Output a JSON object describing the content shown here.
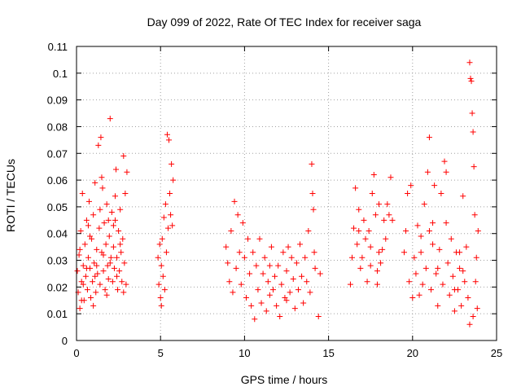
{
  "chart_data": {
    "type": "scatter",
    "title": "Day 099 of 2022, Rate Of TEC Index for receiver saga",
    "xlabel": "GPS time / hours",
    "ylabel": "ROTI / TECUs",
    "xlim": [
      0,
      25
    ],
    "ylim": [
      0,
      0.11
    ],
    "x_ticks": [
      0,
      5,
      10,
      15,
      20,
      25
    ],
    "x_tick_labels": [
      "0",
      "5",
      "10",
      "15",
      "20",
      "25"
    ],
    "y_ticks": [
      0,
      0.01,
      0.02,
      0.03,
      0.04,
      0.05,
      0.06,
      0.07,
      0.08,
      0.09,
      0.1,
      0.11
    ],
    "y_tick_labels": [
      "0",
      "0.01",
      "0.02",
      "0.03",
      "0.04",
      "0.05",
      "0.06",
      "0.07",
      "0.08",
      "0.09",
      "0.1",
      "0.11"
    ],
    "grid": true,
    "marker": "plus",
    "marker_color": "#ff0000",
    "series": [
      {
        "values": [
          [
            0.05,
            0.026
          ],
          [
            0.1,
            0.018
          ],
          [
            0.15,
            0.032
          ],
          [
            0.2,
            0.012
          ],
          [
            0.25,
            0.041
          ],
          [
            0.3,
            0.022
          ],
          [
            0.35,
            0.055
          ],
          [
            0.4,
            0.028
          ],
          [
            0.45,
            0.015
          ],
          [
            0.5,
            0.036
          ],
          [
            0.55,
            0.024
          ],
          [
            0.6,
            0.045
          ],
          [
            0.65,
            0.019
          ],
          [
            0.7,
            0.031
          ],
          [
            0.75,
            0.052
          ],
          [
            0.8,
            0.027
          ],
          [
            0.85,
            0.016
          ],
          [
            0.9,
            0.038
          ],
          [
            0.95,
            0.022
          ],
          [
            1.0,
            0.047
          ],
          [
            1.05,
            0.029
          ],
          [
            1.1,
            0.059
          ],
          [
            1.15,
            0.018
          ],
          [
            1.2,
            0.034
          ],
          [
            1.25,
            0.025
          ],
          [
            1.3,
            0.073
          ],
          [
            1.35,
            0.042
          ],
          [
            1.4,
            0.021
          ],
          [
            1.45,
            0.076
          ],
          [
            1.5,
            0.033
          ],
          [
            1.55,
            0.057
          ],
          [
            1.6,
            0.026
          ],
          [
            1.65,
            0.044
          ],
          [
            1.7,
            0.019
          ],
          [
            1.75,
            0.036
          ],
          [
            1.8,
            0.051
          ],
          [
            1.85,
            0.028
          ],
          [
            1.9,
            0.023
          ],
          [
            1.95,
            0.039
          ],
          [
            2.0,
            0.083
          ],
          [
            2.05,
            0.031
          ],
          [
            2.1,
            0.048
          ],
          [
            2.15,
            0.022
          ],
          [
            2.2,
            0.035
          ],
          [
            2.25,
            0.027
          ],
          [
            2.3,
            0.045
          ],
          [
            2.35,
            0.064
          ],
          [
            2.4,
            0.031
          ],
          [
            2.45,
            0.019
          ],
          [
            2.5,
            0.041
          ],
          [
            2.55,
            0.026
          ],
          [
            2.6,
            0.049
          ],
          [
            2.65,
            0.033
          ],
          [
            2.7,
            0.022
          ],
          [
            2.75,
            0.038
          ],
          [
            2.8,
            0.069
          ],
          [
            2.85,
            0.029
          ],
          [
            2.9,
            0.055
          ],
          [
            2.95,
            0.021
          ],
          [
            3.0,
            0.063
          ],
          [
            0.2,
            0.034
          ],
          [
            0.4,
            0.021
          ],
          [
            0.6,
            0.027
          ],
          [
            0.8,
            0.039
          ],
          [
            1.0,
            0.013
          ],
          [
            1.2,
            0.028
          ],
          [
            1.4,
            0.049
          ],
          [
            1.6,
            0.032
          ],
          [
            1.8,
            0.017
          ],
          [
            2.0,
            0.029
          ],
          [
            2.2,
            0.043
          ],
          [
            2.4,
            0.024
          ],
          [
            2.6,
            0.036
          ],
          [
            2.8,
            0.018
          ],
          [
            0.3,
            0.015
          ],
          [
            0.7,
            0.043
          ],
          [
            1.1,
            0.024
          ],
          [
            1.5,
            0.061
          ],
          [
            1.9,
            0.045
          ],
          [
            2.3,
            0.054
          ],
          [
            4.85,
            0.031
          ],
          [
            4.9,
            0.021
          ],
          [
            4.95,
            0.036
          ],
          [
            5.0,
            0.016
          ],
          [
            5.05,
            0.028
          ],
          [
            5.1,
            0.038
          ],
          [
            5.15,
            0.024
          ],
          [
            5.2,
            0.046
          ],
          [
            5.25,
            0.019
          ],
          [
            5.3,
            0.051
          ],
          [
            5.35,
            0.033
          ],
          [
            5.4,
            0.077
          ],
          [
            5.45,
            0.042
          ],
          [
            5.5,
            0.075
          ],
          [
            5.55,
            0.055
          ],
          [
            5.6,
            0.047
          ],
          [
            5.65,
            0.066
          ],
          [
            5.7,
            0.043
          ],
          [
            5.75,
            0.06
          ],
          [
            5.05,
            0.013
          ],
          [
            8.9,
            0.035
          ],
          [
            9.0,
            0.029
          ],
          [
            9.1,
            0.022
          ],
          [
            9.2,
            0.041
          ],
          [
            9.3,
            0.018
          ],
          [
            9.4,
            0.052
          ],
          [
            9.5,
            0.027
          ],
          [
            9.6,
            0.047
          ],
          [
            9.7,
            0.033
          ],
          [
            9.8,
            0.021
          ],
          [
            9.9,
            0.044
          ],
          [
            10.0,
            0.031
          ],
          [
            10.1,
            0.016
          ],
          [
            10.2,
            0.038
          ],
          [
            10.3,
            0.025
          ],
          [
            10.4,
            0.013
          ],
          [
            10.5,
            0.033
          ],
          [
            10.6,
            0.008
          ],
          [
            10.7,
            0.028
          ],
          [
            10.8,
            0.019
          ],
          [
            10.9,
            0.038
          ],
          [
            11.0,
            0.014
          ],
          [
            11.1,
            0.025
          ],
          [
            11.2,
            0.031
          ],
          [
            11.3,
            0.011
          ],
          [
            11.4,
            0.022
          ],
          [
            11.5,
            0.017
          ],
          [
            11.6,
            0.035
          ],
          [
            11.7,
            0.019
          ],
          [
            11.8,
            0.024
          ],
          [
            11.9,
            0.013
          ],
          [
            12.0,
            0.028
          ],
          [
            12.1,
            0.009
          ],
          [
            12.2,
            0.021
          ],
          [
            12.3,
            0.033
          ],
          [
            12.4,
            0.016
          ],
          [
            12.5,
            0.026
          ],
          [
            12.6,
            0.035
          ],
          [
            12.7,
            0.018
          ],
          [
            12.8,
            0.031
          ],
          [
            12.9,
            0.023
          ],
          [
            13.0,
            0.012
          ],
          [
            13.1,
            0.029
          ],
          [
            13.2,
            0.019
          ],
          [
            13.3,
            0.036
          ],
          [
            13.4,
            0.024
          ],
          [
            13.5,
            0.014
          ],
          [
            13.6,
            0.031
          ],
          [
            13.7,
            0.022
          ],
          [
            13.8,
            0.041
          ],
          [
            13.9,
            0.018
          ],
          [
            14.0,
            0.066
          ],
          [
            14.05,
            0.055
          ],
          [
            14.1,
            0.049
          ],
          [
            14.15,
            0.033
          ],
          [
            14.2,
            0.027
          ],
          [
            14.5,
            0.025
          ],
          [
            14.4,
            0.009
          ],
          [
            11.5,
            0.028
          ],
          [
            12.5,
            0.015
          ],
          [
            16.3,
            0.021
          ],
          [
            16.4,
            0.031
          ],
          [
            16.5,
            0.042
          ],
          [
            16.6,
            0.057
          ],
          [
            16.7,
            0.036
          ],
          [
            16.8,
            0.049
          ],
          [
            16.9,
            0.027
          ],
          [
            17.0,
            0.031
          ],
          [
            17.1,
            0.045
          ],
          [
            17.2,
            0.038
          ],
          [
            17.3,
            0.022
          ],
          [
            17.4,
            0.041
          ],
          [
            17.5,
            0.035
          ],
          [
            17.6,
            0.055
          ],
          [
            17.7,
            0.062
          ],
          [
            17.8,
            0.047
          ],
          [
            17.9,
            0.021
          ],
          [
            18.0,
            0.033
          ],
          [
            18.1,
            0.029
          ],
          [
            18.3,
            0.045
          ],
          [
            18.4,
            0.038
          ],
          [
            18.5,
            0.051
          ],
          [
            18.6,
            0.047
          ],
          [
            18.7,
            0.061
          ],
          [
            18.8,
            0.045
          ],
          [
            17.9,
            0.026
          ],
          [
            18.0,
            0.051
          ],
          [
            16.8,
            0.041
          ],
          [
            17.5,
            0.028
          ],
          [
            18.2,
            0.034
          ],
          [
            19.5,
            0.033
          ],
          [
            19.6,
            0.041
          ],
          [
            19.7,
            0.055
          ],
          [
            19.8,
            0.022
          ],
          [
            19.9,
            0.058
          ],
          [
            20.0,
            0.016
          ],
          [
            20.1,
            0.031
          ],
          [
            20.2,
            0.025
          ],
          [
            20.3,
            0.043
          ],
          [
            20.4,
            0.017
          ],
          [
            20.5,
            0.033
          ],
          [
            20.6,
            0.021
          ],
          [
            20.7,
            0.051
          ],
          [
            20.8,
            0.027
          ],
          [
            20.9,
            0.063
          ],
          [
            21.0,
            0.041
          ],
          [
            21.1,
            0.019
          ],
          [
            21.2,
            0.036
          ],
          [
            21.3,
            0.058
          ],
          [
            21.4,
            0.025
          ],
          [
            21.5,
            0.013
          ],
          [
            21.6,
            0.034
          ],
          [
            21.7,
            0.055
          ],
          [
            21.8,
            0.021
          ],
          [
            21.9,
            0.067
          ],
          [
            22.0,
            0.044
          ],
          [
            22.1,
            0.029
          ],
          [
            22.2,
            0.017
          ],
          [
            22.3,
            0.038
          ],
          [
            22.4,
            0.024
          ],
          [
            22.5,
            0.011
          ],
          [
            22.6,
            0.033
          ],
          [
            22.7,
            0.019
          ],
          [
            22.8,
            0.027
          ],
          [
            22.9,
            0.013
          ],
          [
            23.0,
            0.054
          ],
          [
            23.1,
            0.022
          ],
          [
            23.2,
            0.035
          ],
          [
            23.3,
            0.016
          ],
          [
            23.4,
            0.104
          ],
          [
            23.45,
            0.098
          ],
          [
            23.5,
            0.097
          ],
          [
            23.55,
            0.085
          ],
          [
            23.6,
            0.078
          ],
          [
            23.65,
            0.065
          ],
          [
            23.7,
            0.047
          ],
          [
            23.75,
            0.022
          ],
          [
            23.8,
            0.031
          ],
          [
            23.85,
            0.012
          ],
          [
            23.9,
            0.041
          ],
          [
            21.0,
            0.076
          ],
          [
            22.0,
            0.063
          ],
          [
            20.5,
            0.039
          ],
          [
            21.5,
            0.027
          ],
          [
            22.5,
            0.019
          ],
          [
            23.0,
            0.026
          ],
          [
            23.4,
            0.006
          ],
          [
            23.6,
            0.009
          ],
          [
            21.2,
            0.044
          ],
          [
            22.8,
            0.033
          ]
        ]
      }
    ]
  }
}
